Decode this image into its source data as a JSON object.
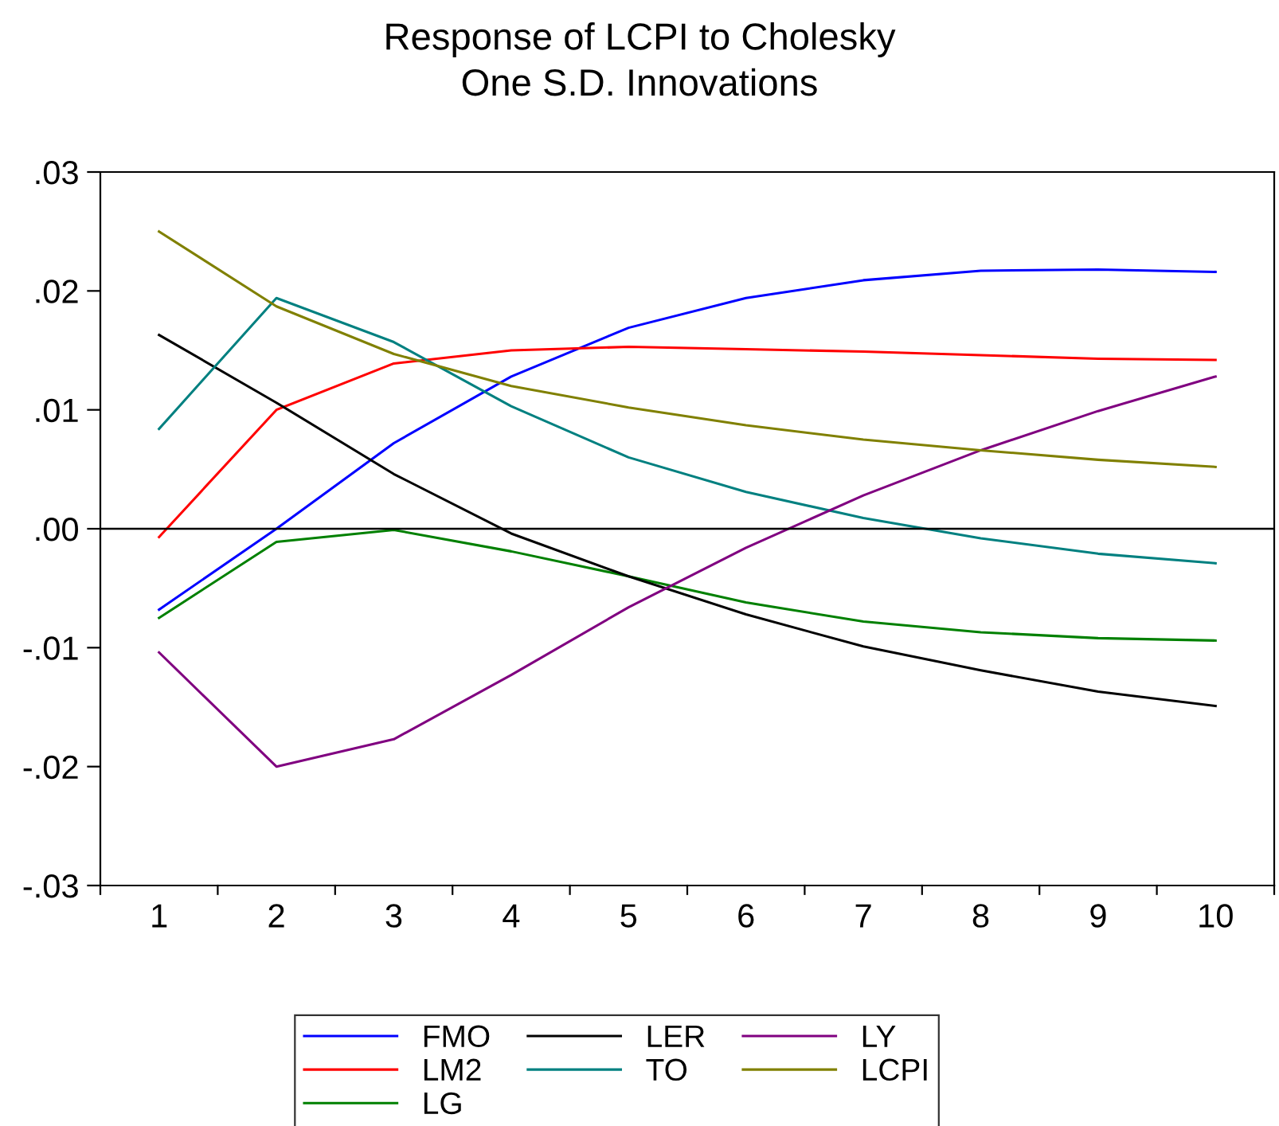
{
  "chart_data": {
    "type": "line",
    "title": "Response of LCPI to Cholesky\nOne S.D. Innovations",
    "categories": [
      "1",
      "2",
      "3",
      "4",
      "5",
      "6",
      "7",
      "8",
      "9",
      "10"
    ],
    "series": [
      {
        "name": "FMO",
        "color": "#0000ff",
        "values": [
          -0.0068,
          0.0,
          0.0072,
          0.0128,
          0.0169,
          0.0194,
          0.0209,
          0.0217,
          0.0218,
          0.0216
        ]
      },
      {
        "name": "LM2",
        "color": "#ff0000",
        "values": [
          -0.0007,
          0.01,
          0.0139,
          0.015,
          0.0153,
          0.0151,
          0.0149,
          0.0146,
          0.0143,
          0.0142
        ]
      },
      {
        "name": "LG",
        "color": "#008000",
        "values": [
          -0.0075,
          -0.0011,
          -0.0001,
          -0.0019,
          -0.004,
          -0.0062,
          -0.0078,
          -0.0087,
          -0.0092,
          -0.0094
        ]
      },
      {
        "name": "LER",
        "color": "#000000",
        "values": [
          0.0163,
          0.0106,
          0.0046,
          -0.0004,
          -0.004,
          -0.0072,
          -0.0099,
          -0.0119,
          -0.0137,
          -0.0149
        ]
      },
      {
        "name": "TO",
        "color": "#008080",
        "values": [
          0.0084,
          0.0194,
          0.0157,
          0.0103,
          0.006,
          0.0031,
          0.0009,
          -0.0008,
          -0.0021,
          -0.0029
        ]
      },
      {
        "name": "LY",
        "color": "#800080",
        "values": [
          -0.0104,
          -0.02,
          -0.0177,
          -0.0123,
          -0.0066,
          -0.0016,
          0.0028,
          0.0066,
          0.0099,
          0.0128
        ]
      },
      {
        "name": "LCPI",
        "color": "#808000",
        "values": [
          0.025,
          0.0187,
          0.0147,
          0.012,
          0.0102,
          0.0087,
          0.0075,
          0.0066,
          0.0058,
          0.0052
        ]
      }
    ],
    "ylim": [
      -0.03,
      0.03
    ],
    "yticks": [
      {
        "value": -0.03,
        "label": "-.03"
      },
      {
        "value": -0.02,
        "label": "-.02"
      },
      {
        "value": -0.01,
        "label": "-.01"
      },
      {
        "value": 0.0,
        "label": ".00"
      },
      {
        "value": 0.01,
        "label": ".01"
      },
      {
        "value": 0.02,
        "label": ".02"
      },
      {
        "value": 0.03,
        "label": ".03"
      }
    ],
    "ref_lines": [
      {
        "axis": "y",
        "value": 0.0,
        "color": "#000000"
      }
    ],
    "grid": false,
    "legend": "bottom",
    "marker": "none",
    "line_style": "solid"
  }
}
